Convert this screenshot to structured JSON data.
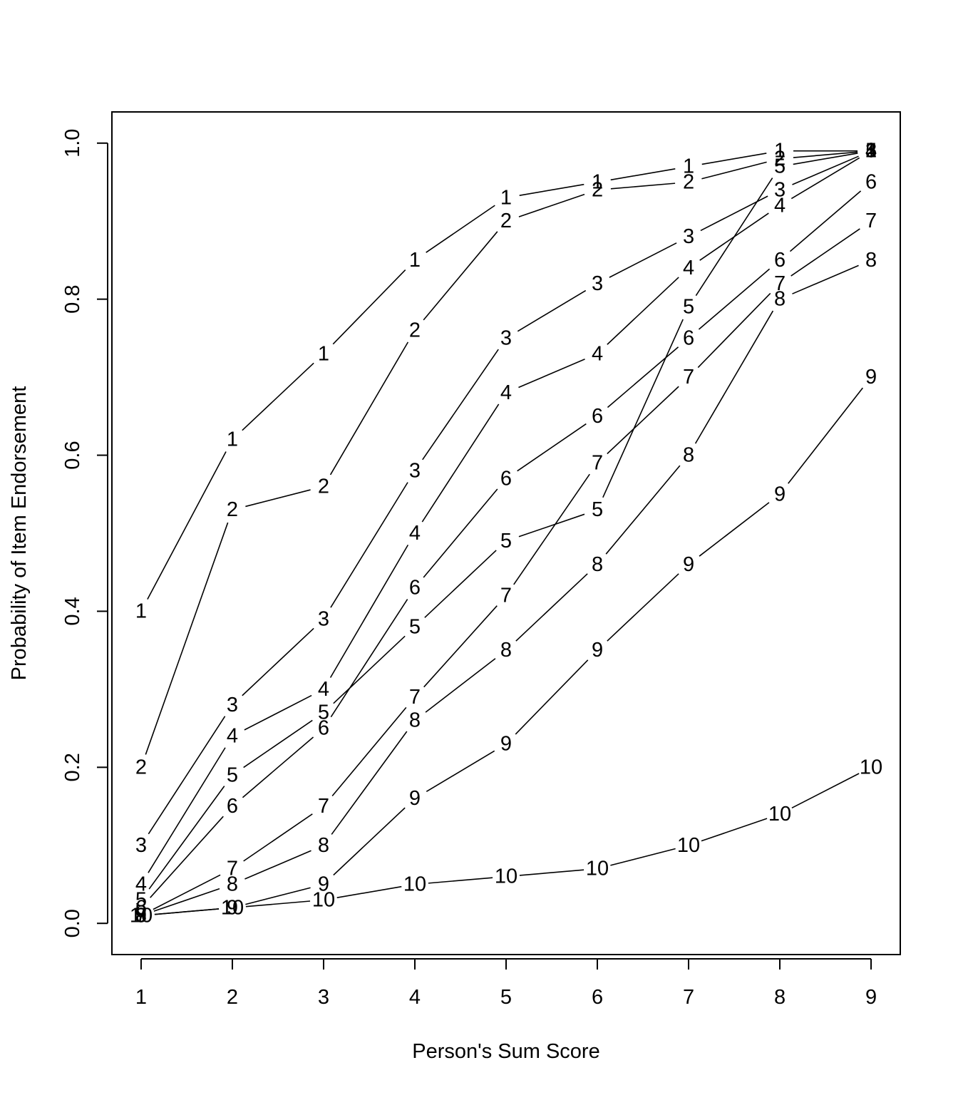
{
  "chart_data": {
    "type": "line",
    "title": "",
    "xlabel": "Person's Sum Score",
    "ylabel": "Probability of Item Endorsement",
    "x": [
      1,
      2,
      3,
      4,
      5,
      6,
      7,
      8,
      9
    ],
    "xlim": [
      0.68,
      9.32
    ],
    "ylim": [
      -0.04,
      1.04
    ],
    "xticks": [
      1,
      2,
      3,
      4,
      5,
      6,
      7,
      8,
      9
    ],
    "yticks": [
      0.0,
      0.2,
      0.4,
      0.6,
      0.8,
      1.0
    ],
    "ytick_labels": [
      "0.0",
      "0.2",
      "0.4",
      "0.6",
      "0.8",
      "1.0"
    ],
    "grid": false,
    "legend": "none",
    "line_color": "#000000",
    "series": [
      {
        "name": "1",
        "values": [
          0.4,
          0.62,
          0.73,
          0.85,
          0.93,
          0.95,
          0.97,
          0.99,
          0.99
        ]
      },
      {
        "name": "2",
        "values": [
          0.2,
          0.53,
          0.56,
          0.76,
          0.9,
          0.94,
          0.95,
          0.98,
          0.99
        ]
      },
      {
        "name": "3",
        "values": [
          0.1,
          0.28,
          0.39,
          0.58,
          0.75,
          0.82,
          0.88,
          0.94,
          0.99
        ]
      },
      {
        "name": "4",
        "values": [
          0.05,
          0.24,
          0.3,
          0.5,
          0.68,
          0.73,
          0.84,
          0.92,
          0.99
        ]
      },
      {
        "name": "5",
        "values": [
          0.03,
          0.19,
          0.27,
          0.38,
          0.49,
          0.53,
          0.79,
          0.97,
          0.99
        ]
      },
      {
        "name": "6",
        "values": [
          0.02,
          0.15,
          0.25,
          0.43,
          0.57,
          0.65,
          0.75,
          0.85,
          0.95
        ]
      },
      {
        "name": "7",
        "values": [
          0.01,
          0.07,
          0.15,
          0.29,
          0.42,
          0.59,
          0.7,
          0.82,
          0.9
        ]
      },
      {
        "name": "8",
        "values": [
          0.01,
          0.05,
          0.1,
          0.26,
          0.35,
          0.46,
          0.6,
          0.8,
          0.85
        ]
      },
      {
        "name": "9",
        "values": [
          0.01,
          0.02,
          0.05,
          0.16,
          0.23,
          0.35,
          0.46,
          0.55,
          0.7
        ]
      },
      {
        "name": "10",
        "values": [
          0.01,
          0.02,
          0.03,
          0.05,
          0.06,
          0.07,
          0.1,
          0.14,
          0.2
        ]
      }
    ]
  }
}
